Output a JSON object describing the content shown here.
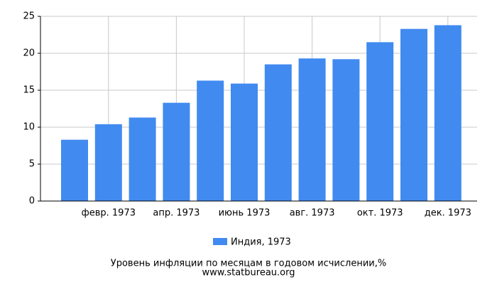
{
  "chart_data": {
    "type": "bar",
    "title": "Уровень инфляции по месяцам в годовом исчислении,%",
    "subtitle": "www.statbureau.org",
    "categories": [
      null,
      "февр. 1973",
      null,
      "апр. 1973",
      null,
      "июнь 1973",
      null,
      "авг. 1973",
      null,
      "окт. 1973",
      null,
      "дек. 1973"
    ],
    "series": [
      {
        "name": "Индия, 1973",
        "color": "#418af0",
        "values": [
          8.3,
          10.4,
          11.3,
          13.3,
          16.3,
          15.9,
          18.5,
          19.3,
          19.2,
          21.5,
          23.3,
          23.8
        ]
      }
    ],
    "ylim": [
      0,
      25
    ],
    "yticks": [
      0,
      5,
      10,
      15,
      20,
      25
    ],
    "grid": true
  }
}
